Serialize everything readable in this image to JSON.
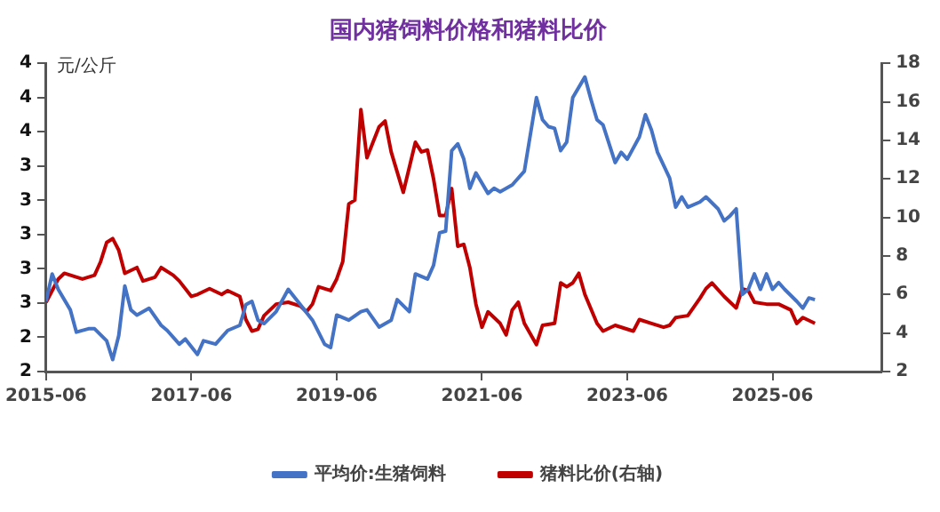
{
  "chart_data": {
    "type": "line",
    "title": "国内猪饲料价格和猪料比价",
    "ylabel": "元/公斤",
    "xlim": [
      "2015-06",
      "2026-12"
    ],
    "xticks": [
      "2015-06",
      "2017-06",
      "2019-06",
      "2021-06",
      "2023-06",
      "2025-06"
    ],
    "ylim": [
      2.2,
      4.0
    ],
    "yticks": [
      {
        "value": 2.2,
        "label": "2"
      },
      {
        "value": 2.4,
        "label": "2"
      },
      {
        "value": 2.6,
        "label": "3"
      },
      {
        "value": 2.8,
        "label": "3"
      },
      {
        "value": 3.0,
        "label": "3"
      },
      {
        "value": 3.2,
        "label": "3"
      },
      {
        "value": 3.4,
        "label": "3"
      },
      {
        "value": 3.6,
        "label": "4"
      },
      {
        "value": 3.8,
        "label": "4"
      },
      {
        "value": 4.0,
        "label": "4"
      }
    ],
    "y2lim": [
      2,
      18
    ],
    "y2ticks": [
      2,
      4,
      6,
      8,
      10,
      12,
      14,
      16,
      18
    ],
    "grid": false,
    "legend": "bottom",
    "marker": "none",
    "line_style": "solid",
    "series": [
      {
        "name": "平均价:生猪饲料",
        "color": "#4472c4",
        "x": [
          "2015-06",
          "2015-07",
          "2015-08",
          "2015-10",
          "2015-11",
          "2016-01",
          "2016-02",
          "2016-04",
          "2016-05",
          "2016-06",
          "2016-07",
          "2016-08",
          "2016-09",
          "2016-11",
          "2017-01",
          "2017-02",
          "2017-04",
          "2017-05",
          "2017-07",
          "2017-08",
          "2017-10",
          "2017-12",
          "2018-02",
          "2018-03",
          "2018-04",
          "2018-05",
          "2018-06",
          "2018-08",
          "2018-10",
          "2018-12",
          "2019-02",
          "2019-04",
          "2019-05",
          "2019-06",
          "2019-08",
          "2019-10",
          "2019-11",
          "2020-01",
          "2020-03",
          "2020-04",
          "2020-06",
          "2020-07",
          "2020-09",
          "2020-10",
          "2020-11",
          "2020-12",
          "2021-01",
          "2021-02",
          "2021-03",
          "2021-04",
          "2021-05",
          "2021-07",
          "2021-08",
          "2021-09",
          "2021-11",
          "2022-01",
          "2022-03",
          "2022-04",
          "2022-05",
          "2022-06",
          "2022-07",
          "2022-08",
          "2022-09",
          "2022-11",
          "2022-12",
          "2023-01",
          "2023-02",
          "2023-04",
          "2023-05",
          "2023-06",
          "2023-08",
          "2023-09",
          "2023-10",
          "2023-11",
          "2024-01",
          "2024-02",
          "2024-03",
          "2024-04",
          "2024-06",
          "2024-07",
          "2024-09",
          "2024-10",
          "2024-11",
          "2024-12",
          "2025-01",
          "2025-02",
          "2025-03",
          "2025-04",
          "2025-05",
          "2025-06",
          "2025-07",
          "2025-08",
          "2025-10",
          "2025-11",
          "2025-12",
          "2026-01"
        ],
        "values": [
          2.61,
          2.77,
          2.68,
          2.56,
          2.43,
          2.45,
          2.45,
          2.38,
          2.27,
          2.41,
          2.7,
          2.56,
          2.53,
          2.57,
          2.47,
          2.44,
          2.36,
          2.39,
          2.3,
          2.38,
          2.36,
          2.44,
          2.47,
          2.59,
          2.61,
          2.5,
          2.48,
          2.55,
          2.68,
          2.59,
          2.5,
          2.36,
          2.34,
          2.53,
          2.5,
          2.55,
          2.56,
          2.46,
          2.5,
          2.62,
          2.55,
          2.77,
          2.74,
          2.82,
          3.01,
          3.02,
          3.49,
          3.53,
          3.44,
          3.27,
          3.36,
          3.24,
          3.27,
          3.25,
          3.29,
          3.37,
          3.8,
          3.67,
          3.63,
          3.62,
          3.49,
          3.54,
          3.8,
          3.92,
          3.79,
          3.67,
          3.64,
          3.42,
          3.48,
          3.44,
          3.57,
          3.7,
          3.61,
          3.48,
          3.33,
          3.16,
          3.22,
          3.16,
          3.19,
          3.22,
          3.15,
          3.08,
          3.11,
          3.15,
          2.65,
          2.68,
          2.77,
          2.68,
          2.77,
          2.68,
          2.72,
          2.68,
          2.61,
          2.57,
          2.63,
          2.62
        ]
      },
      {
        "name": "猪料比价(右轴)",
        "color": "#c00000",
        "axis": "y2",
        "x": [
          "2015-06",
          "2015-08",
          "2015-09",
          "2015-12",
          "2016-02",
          "2016-03",
          "2016-04",
          "2016-05",
          "2016-06",
          "2016-07",
          "2016-09",
          "2016-10",
          "2016-12",
          "2017-01",
          "2017-03",
          "2017-04",
          "2017-06",
          "2017-07",
          "2017-09",
          "2017-11",
          "2017-12",
          "2018-02",
          "2018-03",
          "2018-04",
          "2018-05",
          "2018-06",
          "2018-08",
          "2018-10",
          "2018-12",
          "2019-01",
          "2019-02",
          "2019-03",
          "2019-05",
          "2019-06",
          "2019-07",
          "2019-08",
          "2019-09",
          "2019-10",
          "2019-11",
          "2019-12",
          "2020-01",
          "2020-02",
          "2020-03",
          "2020-05",
          "2020-07",
          "2020-08",
          "2020-09",
          "2020-10",
          "2020-11",
          "2020-12",
          "2021-01",
          "2021-02",
          "2021-03",
          "2021-04",
          "2021-05",
          "2021-06",
          "2021-07",
          "2021-09",
          "2021-10",
          "2021-11",
          "2021-12",
          "2022-01",
          "2022-03",
          "2022-04",
          "2022-06",
          "2022-07",
          "2022-08",
          "2022-09",
          "2022-10",
          "2022-11",
          "2023-01",
          "2023-02",
          "2023-04",
          "2023-07",
          "2023-08",
          "2023-10",
          "2023-12",
          "2024-01",
          "2024-02",
          "2024-04",
          "2024-06",
          "2024-07",
          "2024-08",
          "2024-10",
          "2024-12",
          "2025-01",
          "2025-02",
          "2025-03",
          "2025-05",
          "2025-07",
          "2025-09",
          "2025-10",
          "2025-11",
          "2026-01"
        ],
        "values": [
          5.6,
          6.8,
          7.1,
          6.8,
          7.0,
          7.7,
          8.7,
          8.9,
          8.3,
          7.1,
          7.4,
          6.7,
          6.9,
          7.4,
          7.0,
          6.7,
          5.9,
          6.0,
          6.3,
          6.0,
          6.2,
          5.9,
          4.7,
          4.1,
          4.2,
          4.9,
          5.5,
          5.6,
          5.4,
          5.1,
          5.5,
          6.4,
          6.2,
          6.8,
          7.7,
          10.7,
          10.9,
          15.6,
          13.1,
          13.9,
          14.7,
          15.0,
          13.4,
          11.3,
          13.9,
          13.4,
          13.5,
          12.0,
          10.1,
          10.1,
          11.5,
          8.5,
          8.6,
          7.4,
          5.5,
          4.3,
          5.1,
          4.5,
          3.9,
          5.2,
          5.6,
          4.5,
          3.4,
          4.4,
          4.5,
          6.6,
          6.4,
          6.6,
          7.1,
          6.0,
          4.5,
          4.1,
          4.4,
          4.1,
          4.7,
          4.5,
          4.3,
          4.4,
          4.8,
          4.9,
          5.8,
          6.3,
          6.6,
          5.9,
          5.3,
          6.3,
          6.2,
          5.6,
          5.5,
          5.5,
          5.2,
          4.5,
          4.8,
          4.5
        ]
      }
    ]
  }
}
